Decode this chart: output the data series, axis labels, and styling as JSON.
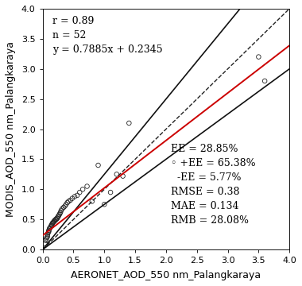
{
  "title": "",
  "xlabel": "AERONET_AOD_550 nm_Palangkaraya",
  "ylabel": "MODIS_AOD_550 nm_Palangkaraya",
  "xlim": [
    0.0,
    4.0
  ],
  "ylim": [
    0.0,
    4.0
  ],
  "xticks": [
    0.0,
    0.5,
    1.0,
    1.5,
    2.0,
    2.5,
    3.0,
    3.5,
    4.0
  ],
  "yticks": [
    0.0,
    0.5,
    1.0,
    1.5,
    2.0,
    2.5,
    3.0,
    3.5,
    4.0
  ],
  "scatter_x": [
    0.04,
    0.05,
    0.06,
    0.07,
    0.08,
    0.08,
    0.09,
    0.1,
    0.1,
    0.11,
    0.12,
    0.13,
    0.14,
    0.15,
    0.15,
    0.16,
    0.17,
    0.18,
    0.19,
    0.2,
    0.21,
    0.22,
    0.23,
    0.24,
    0.25,
    0.26,
    0.27,
    0.28,
    0.29,
    0.3,
    0.32,
    0.34,
    0.36,
    0.38,
    0.4,
    0.42,
    0.45,
    0.48,
    0.52,
    0.56,
    0.6,
    0.65,
    0.72,
    0.8,
    0.9,
    1.0,
    1.1,
    1.2,
    1.3,
    1.4,
    3.5,
    3.6
  ],
  "scatter_y": [
    0.1,
    0.15,
    0.18,
    0.2,
    0.22,
    0.25,
    0.28,
    0.3,
    0.32,
    0.35,
    0.36,
    0.38,
    0.4,
    0.4,
    0.42,
    0.44,
    0.45,
    0.46,
    0.48,
    0.48,
    0.5,
    0.5,
    0.52,
    0.52,
    0.55,
    0.56,
    0.58,
    0.6,
    0.62,
    0.65,
    0.68,
    0.7,
    0.72,
    0.75,
    0.78,
    0.8,
    0.82,
    0.85,
    0.88,
    0.9,
    0.95,
    1.0,
    1.05,
    0.8,
    1.4,
    0.75,
    0.95,
    1.25,
    1.22,
    2.1,
    3.2,
    2.8
  ],
  "regression_slope": 0.7885,
  "regression_intercept": 0.2345,
  "ee_upper_slope": 1.25,
  "ee_lower_slope": 0.75,
  "stats_text_upper": "r = 0.89\nn = 52\ny = 0.7885x + 0.2345",
  "stats_text_lower": "EE = 28.85%\n◦ +EE = 65.38%\n  -EE = 5.77%\nRMSE = 0.38\nMAE = 0.134\nRMB = 28.08%",
  "marker_color": "none",
  "marker_edge_color": "#222222",
  "marker_size": 4,
  "regression_line_color": "#cc0000",
  "one_to_one_line_color": "#222222",
  "ee_line_color": "#111111",
  "background_color": "#ffffff",
  "font_size_labels": 9,
  "font_size_stats": 9,
  "font_size_ticks": 8
}
